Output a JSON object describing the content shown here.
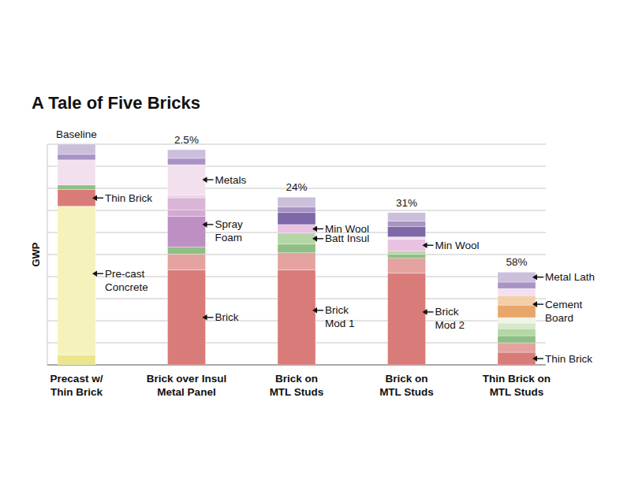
{
  "chart_data": {
    "type": "bar",
    "stacked": true,
    "title": "A Tale of Five Bricks",
    "y_label": "GWP",
    "ylim": [
      0,
      10
    ],
    "yticks": [
      0,
      1,
      2,
      3,
      4,
      5,
      6,
      7,
      8,
      9,
      10
    ],
    "grid": true,
    "tick_labels": "x",
    "categories": [
      "Precast w/\nThin Brick",
      "Brick over Insul\nMetal Panel",
      "Brick on\nMTL Studs",
      "Brick on\nMTL Studs",
      "Thin Brick on\nMTL Studs"
    ],
    "bars": [
      {
        "top_label": "Baseline",
        "segments": [
          {
            "value": 0.44,
            "color": "#ece58f"
          },
          {
            "value": 6.75,
            "color": "#f6f2bb",
            "label": "Pre-cast\nConcrete"
          },
          {
            "value": 0.75,
            "color": "#d97b78",
            "label": "Thin Brick"
          },
          {
            "value": 0.21,
            "color": "#8fbf84"
          },
          {
            "value": 1.14,
            "color": "#f3e0ee"
          },
          {
            "value": 0.25,
            "color": "#a893c4"
          },
          {
            "value": 0.46,
            "color": "#cbbfdc"
          }
        ]
      },
      {
        "top_label": "2.5%",
        "segments": [
          {
            "value": 4.3,
            "color": "#d97b78",
            "label": "Brick"
          },
          {
            "value": 0.72,
            "color": "#e4a3a0"
          },
          {
            "value": 0.32,
            "color": "#8fbf84"
          },
          {
            "value": 1.4,
            "color": "#be8fc2",
            "label": "Spray\nFoam"
          },
          {
            "value": 0.29,
            "color": "#d3a9d2"
          },
          {
            "value": 0.54,
            "color": "#dab4d6"
          },
          {
            "value": 0.14,
            "color": "#ecd3e6"
          },
          {
            "value": 1.36,
            "color": "#f3e0ee",
            "label": "Metals"
          },
          {
            "value": 0.29,
            "color": "#a893c4"
          },
          {
            "value": 0.39,
            "color": "#cbbfdc"
          }
        ]
      },
      {
        "top_label": "24%",
        "segments": [
          {
            "value": 4.3,
            "color": "#d97b78",
            "label": "Brick\nMod 1"
          },
          {
            "value": 0.78,
            "color": "#e4a3a0"
          },
          {
            "value": 0.39,
            "color": "#8fbf84"
          },
          {
            "value": 0.5,
            "color": "#b5d6a5",
            "label": "Batt Insul"
          },
          {
            "value": 0.39,
            "color": "#e8c2e0",
            "label": "Min Wool"
          },
          {
            "value": 0.54,
            "color": "#7d68a8"
          },
          {
            "value": 0.25,
            "color": "#a893c4"
          },
          {
            "value": 0.45,
            "color": "#cbbfdc"
          }
        ]
      },
      {
        "top_label": "31%",
        "segments": [
          {
            "value": 4.15,
            "color": "#d97b78",
            "label": "Brick\nMod 2"
          },
          {
            "value": 0.68,
            "color": "#e4a3a0"
          },
          {
            "value": 0.18,
            "color": "#8fbf84"
          },
          {
            "value": 0.14,
            "color": "#b5d6a5"
          },
          {
            "value": 0.54,
            "color": "#e8c2e0",
            "label": "Min Wool"
          },
          {
            "value": 0.11,
            "color": "#f3e0ee"
          },
          {
            "value": 0.46,
            "color": "#7d68a8"
          },
          {
            "value": 0.25,
            "color": "#a893c4"
          },
          {
            "value": 0.39,
            "color": "#cbbfdc"
          }
        ]
      },
      {
        "top_label": "58%",
        "segments": [
          {
            "value": 0.57,
            "color": "#d97b78",
            "label": "Thin Brick"
          },
          {
            "value": 0.43,
            "color": "#e4a3a0"
          },
          {
            "value": 0.32,
            "color": "#8fbf84"
          },
          {
            "value": 0.32,
            "color": "#b5d6a5"
          },
          {
            "value": 0.25,
            "color": "#d6e8c8"
          },
          {
            "value": 0.25,
            "color": "#eef4e6"
          },
          {
            "value": 0.57,
            "color": "#e9a66a",
            "label": "Cement\nBoard"
          },
          {
            "value": 0.43,
            "color": "#f3cfa8"
          },
          {
            "value": 0.32,
            "color": "#f3e0ee"
          },
          {
            "value": 0.29,
            "color": "#a893c4"
          },
          {
            "value": 0.45,
            "color": "#cbbfdc",
            "label": "Metal Lath"
          }
        ]
      }
    ]
  }
}
